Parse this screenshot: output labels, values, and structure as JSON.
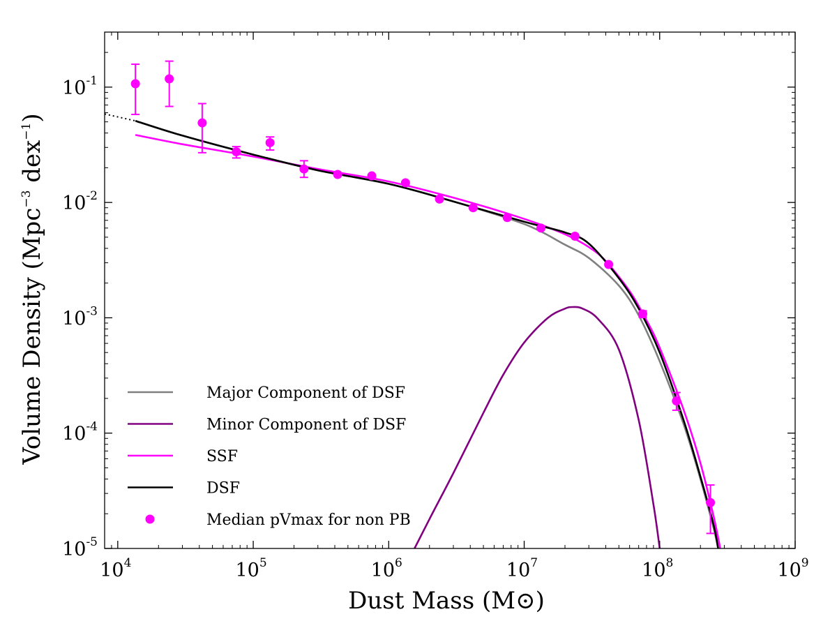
{
  "chart_data": {
    "type": "line",
    "xscale": "log",
    "yscale": "log",
    "xlim": [
      8000,
      1000000000
    ],
    "ylim": [
      1e-05,
      0.3
    ],
    "xlabel": "Dust Mass (M⊙)",
    "ylabel_parts": {
      "prefix": "Volume Density (Mpc",
      "exp1": "−3",
      "middle": " dex",
      "exp2": "−1",
      "suffix": ")"
    },
    "xticks": [
      {
        "value": 10000,
        "base": "10",
        "exp": "4"
      },
      {
        "value": 100000,
        "base": "10",
        "exp": "5"
      },
      {
        "value": 1000000,
        "base": "10",
        "exp": "6"
      },
      {
        "value": 10000000,
        "base": "10",
        "exp": "7"
      },
      {
        "value": 100000000,
        "base": "10",
        "exp": "8"
      },
      {
        "value": 1000000000,
        "base": "10",
        "exp": "9"
      }
    ],
    "yticks": [
      {
        "value": 0.1,
        "base": "10",
        "exp": "-1"
      },
      {
        "value": 0.01,
        "base": "10",
        "exp": "-2"
      },
      {
        "value": 0.001,
        "base": "10",
        "exp": "-3"
      },
      {
        "value": 0.0001,
        "base": "10",
        "exp": "-4"
      },
      {
        "value": 1e-05,
        "base": "10",
        "exp": "-5"
      }
    ],
    "series": [
      {
        "name": "Major Component of DSF",
        "color": "#808080",
        "x": [
          13500,
          30000,
          100000,
          300000,
          1000000,
          3000000,
          10000000,
          20000000,
          30000000,
          50000000,
          70000000,
          100000000,
          150000000,
          200000000,
          250000000,
          270000000
        ],
        "y": [
          0.051,
          0.038,
          0.026,
          0.019,
          0.0145,
          0.0102,
          0.0065,
          0.0043,
          0.0033,
          0.0019,
          0.00105,
          0.00042,
          0.00012,
          4e-05,
          1.5e-05,
          1e-05
        ]
      },
      {
        "name": "Minor Component of DSF",
        "color": "#800080",
        "x": [
          1550000,
          2000000,
          3000000,
          5000000,
          7000000,
          10000000,
          15000000,
          20000000,
          23000000,
          27000000,
          35000000,
          50000000,
          70000000,
          90000000,
          100000000
        ],
        "y": [
          1e-05,
          1.8e-05,
          4.5e-05,
          0.00015,
          0.00032,
          0.00061,
          0.001,
          0.0012,
          0.00124,
          0.0012,
          0.00098,
          0.00053,
          0.00013,
          2.4e-05,
          1e-05
        ]
      },
      {
        "name": "SSF",
        "color": "#ff00ff",
        "x": [
          13500,
          30000,
          100000,
          300000,
          1000000,
          3000000,
          10000000,
          20000000,
          30000000,
          40000000,
          60000000,
          80000000,
          100000000,
          150000000,
          200000000,
          250000000,
          280000000
        ],
        "y": [
          0.0385,
          0.032,
          0.025,
          0.0195,
          0.0152,
          0.011,
          0.0072,
          0.0053,
          0.0041,
          0.0031,
          0.0017,
          0.00095,
          0.00055,
          0.00016,
          5.5e-05,
          1.9e-05,
          1e-05
        ]
      },
      {
        "name": "DSF",
        "color": "#000000",
        "x": [
          13500,
          30000,
          100000,
          300000,
          1000000,
          3000000,
          10000000,
          20000000,
          30000000,
          50000000,
          70000000,
          100000000,
          150000000,
          200000000,
          250000000,
          270000000
        ],
        "y": [
          0.051,
          0.038,
          0.026,
          0.019,
          0.0145,
          0.0102,
          0.0068,
          0.0055,
          0.0044,
          0.0022,
          0.0012,
          0.0005,
          0.00013,
          4.2e-05,
          1.6e-05,
          1e-05
        ]
      }
    ],
    "extrapolation": {
      "style": "dotted",
      "color": "#000000",
      "x": [
        8000,
        13500
      ],
      "y": [
        0.0585,
        0.051
      ]
    },
    "points": {
      "name": "Median pVmax for non PB",
      "color": "#ff00ff",
      "x": [
        13500,
        24000,
        42000,
        75000,
        133000,
        237000,
        420000,
        750000,
        1330000,
        2370000,
        4200000,
        7500000,
        13300000,
        23700000,
        42000000,
        75000000,
        133000000,
        237000000
      ],
      "y": [
        0.107,
        0.118,
        0.049,
        0.0275,
        0.033,
        0.0195,
        0.0175,
        0.017,
        0.0148,
        0.0107,
        0.009,
        0.0074,
        0.006,
        0.0051,
        0.0029,
        0.00108,
        0.00019,
        2.5e-05
      ],
      "err_low": [
        0.058,
        0.068,
        0.027,
        0.0243,
        0.0285,
        0.0165,
        null,
        null,
        null,
        null,
        null,
        null,
        null,
        null,
        null,
        0.00101,
        0.000158,
        1.35e-05
      ],
      "err_high": [
        0.158,
        0.168,
        0.072,
        0.0305,
        0.037,
        0.023,
        null,
        null,
        null,
        null,
        null,
        null,
        null,
        null,
        null,
        0.00115,
        0.000225,
        3.55e-05
      ]
    },
    "legend": {
      "location": "lower-left",
      "entries": [
        {
          "label": "Major Component of DSF",
          "kind": "line",
          "color": "#808080"
        },
        {
          "label": "Minor Component of DSF",
          "kind": "line",
          "color": "#800080"
        },
        {
          "label": "SSF",
          "kind": "line",
          "color": "#ff00ff"
        },
        {
          "label": "DSF",
          "kind": "line",
          "color": "#000000"
        },
        {
          "label": "Median pVmax for non PB",
          "kind": "marker",
          "color": "#ff00ff"
        }
      ]
    }
  }
}
